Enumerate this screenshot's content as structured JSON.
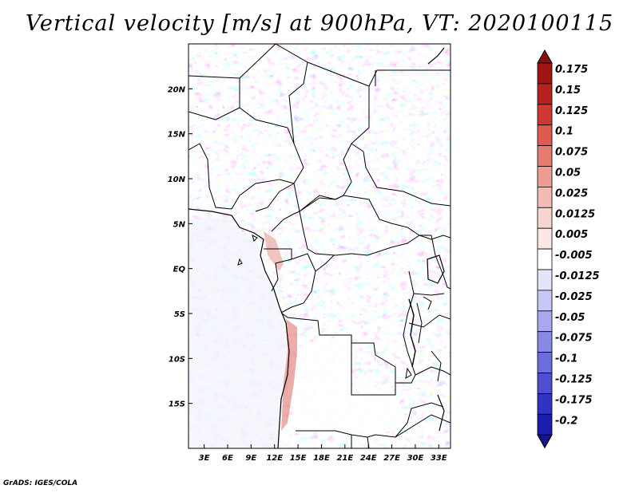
{
  "title": "Vertical velocity [m/s] at 900hPa, VT: 2020100115",
  "credit": "GrADS: IGES/COLA",
  "map": {
    "lon_range": [
      1,
      34.5
    ],
    "lat_range": [
      -20,
      25
    ],
    "x_ticks": [
      {
        "value": 3,
        "label": "3E"
      },
      {
        "value": 6,
        "label": "6E"
      },
      {
        "value": 9,
        "label": "9E"
      },
      {
        "value": 12,
        "label": "12E"
      },
      {
        "value": 15,
        "label": "15E"
      },
      {
        "value": 18,
        "label": "18E"
      },
      {
        "value": 21,
        "label": "21E"
      },
      {
        "value": 24,
        "label": "24E"
      },
      {
        "value": 27,
        "label": "27E"
      },
      {
        "value": 30,
        "label": "30E"
      },
      {
        "value": 33,
        "label": "33E"
      }
    ],
    "y_ticks": [
      {
        "value": 20,
        "label": "20N"
      },
      {
        "value": 15,
        "label": "15N"
      },
      {
        "value": 10,
        "label": "10N"
      },
      {
        "value": 5,
        "label": "5N"
      },
      {
        "value": 0,
        "label": "EQ"
      },
      {
        "value": -5,
        "label": "5S"
      },
      {
        "value": -10,
        "label": "10S"
      },
      {
        "value": -15,
        "label": "15S"
      }
    ]
  },
  "colorbar": {
    "levels": [
      {
        "label": "0.175",
        "color": "#a01414"
      },
      {
        "label": "0.15",
        "color": "#b8211f"
      },
      {
        "label": "0.125",
        "color": "#cc3a33"
      },
      {
        "label": "0.1",
        "color": "#de5a50"
      },
      {
        "label": "0.075",
        "color": "#e57b72"
      },
      {
        "label": "0.05",
        "color": "#ee9c94"
      },
      {
        "label": "0.025",
        "color": "#f4bab4"
      },
      {
        "label": "0.0125",
        "color": "#f8d4d0"
      },
      {
        "label": "0.005",
        "color": "#fbe8e6"
      },
      {
        "label": "-0.005",
        "color": "#ffffff"
      },
      {
        "label": "-0.0125",
        "color": "#e4e4fa"
      },
      {
        "label": "-0.025",
        "color": "#c8c8f4"
      },
      {
        "label": "-0.05",
        "color": "#a8a8ee"
      },
      {
        "label": "-0.075",
        "color": "#8a8ae6"
      },
      {
        "label": "-0.1",
        "color": "#6c6cde"
      },
      {
        "label": "-0.125",
        "color": "#4e4ed2"
      },
      {
        "label": "-0.175",
        "color": "#3232c4"
      },
      {
        "label": "-0.2",
        "color": "#1c1cae"
      }
    ],
    "top_triangle_color": "#8a1010",
    "bottom_triangle_color": "#14148e"
  }
}
